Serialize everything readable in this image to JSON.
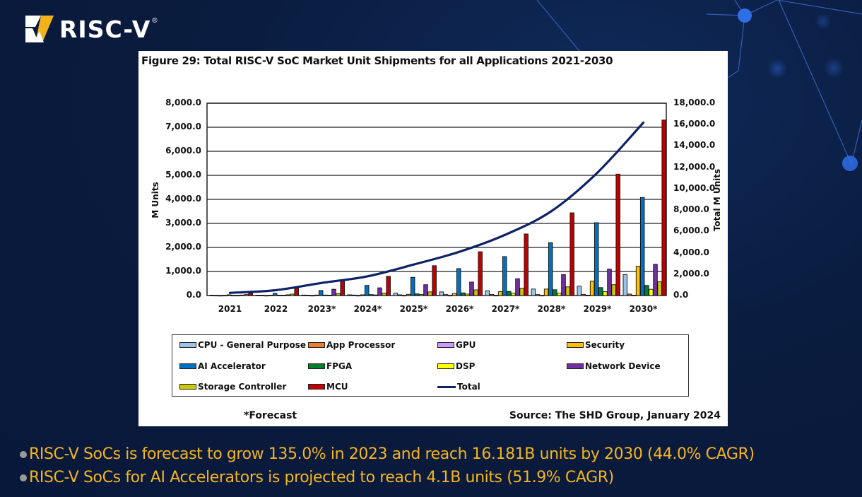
{
  "brand": {
    "logo_text": "RISC-V",
    "registered_mark": "®",
    "colors": {
      "gold": "#f2b21b",
      "white": "#ffffff"
    }
  },
  "footer": {
    "forecast_note": "*Forecast",
    "source": "Source: The SHD Group, January 2024"
  },
  "bullets": [
    "RISC-V SoCs is forecast to grow 135.0% in 2023 and reach 16.181B units by 2030 (44.0% CAGR)",
    "RISC-V SoCs for AI Accelerators is projected to reach 4.1B units (51.9% CAGR)"
  ],
  "chart_data": {
    "type": "bar",
    "title": "Figure 29: Total RISC-V SoC Market Unit Shipments for all Applications 2021-2030",
    "xlabel": "",
    "ylabel": "M Units",
    "y2label": "Total M Units",
    "ylim": [
      0,
      8000
    ],
    "y2lim": [
      0,
      18000
    ],
    "grid": true,
    "legend_position": "bottom",
    "categories": [
      "2021",
      "2022",
      "2023*",
      "2024*",
      "2025*",
      "2026*",
      "2027*",
      "2028*",
      "2029*",
      "2030*"
    ],
    "yticks": [
      "0.0",
      "1,000.0",
      "2,000.0",
      "3,000.0",
      "4,000.0",
      "5,000.0",
      "6,000.0",
      "7,000.0",
      "8,000.0"
    ],
    "y2ticks": [
      "0.0",
      "2,000.0",
      "4,000.0",
      "6,000.0",
      "8,000.0",
      "10,000.0",
      "12,000.0",
      "14,000.0",
      "16,000.0",
      "18,000.0"
    ],
    "series": [
      {
        "name": "CPU - General Purpose",
        "color": "#9dc3e6",
        "values": [
          10,
          15,
          20,
          30,
          100,
          150,
          200,
          270,
          390,
          870
        ]
      },
      {
        "name": "App Processor",
        "color": "#ed7d31",
        "values": [
          5,
          10,
          15,
          20,
          30,
          40,
          45,
          40,
          50,
          60
        ]
      },
      {
        "name": "GPU",
        "color": "#cc99ff",
        "values": [
          1,
          2,
          3,
          3,
          4,
          5,
          5,
          5,
          10,
          10
        ]
      },
      {
        "name": "Security",
        "color": "#ffc000",
        "values": [
          5,
          10,
          20,
          30,
          50,
          80,
          160,
          270,
          600,
          1220
        ]
      },
      {
        "name": "AI Accelerator",
        "color": "#0070c0",
        "values": [
          30,
          90,
          210,
          420,
          760,
          1120,
          1620,
          2200,
          3030,
          4080
        ]
      },
      {
        "name": "FPGA",
        "color": "#00802b",
        "values": [
          5,
          10,
          20,
          40,
          70,
          110,
          170,
          240,
          330,
          420
        ]
      },
      {
        "name": "DSP",
        "color": "#ffff00",
        "values": [
          5,
          10,
          15,
          25,
          40,
          60,
          90,
          100,
          160,
          260
        ]
      },
      {
        "name": "Network Device",
        "color": "#7030a0",
        "values": [
          20,
          30,
          260,
          320,
          450,
          560,
          700,
          870,
          1100,
          1300
        ]
      },
      {
        "name": "Storage Controller",
        "color": "#c9c900",
        "values": [
          40,
          60,
          80,
          100,
          150,
          235,
          300,
          360,
          450,
          570
        ]
      },
      {
        "name": "MCU",
        "color": "#c00000",
        "values": [
          100,
          310,
          620,
          800,
          1240,
          1820,
          2560,
          3440,
          5050,
          7300
        ]
      },
      {
        "name": "Total",
        "color": "#0d2266",
        "type": "line",
        "axis": "right",
        "values": [
          250,
          500,
          1180,
          1800,
          2900,
          4100,
          5700,
          7900,
          11500,
          16181
        ]
      }
    ]
  }
}
